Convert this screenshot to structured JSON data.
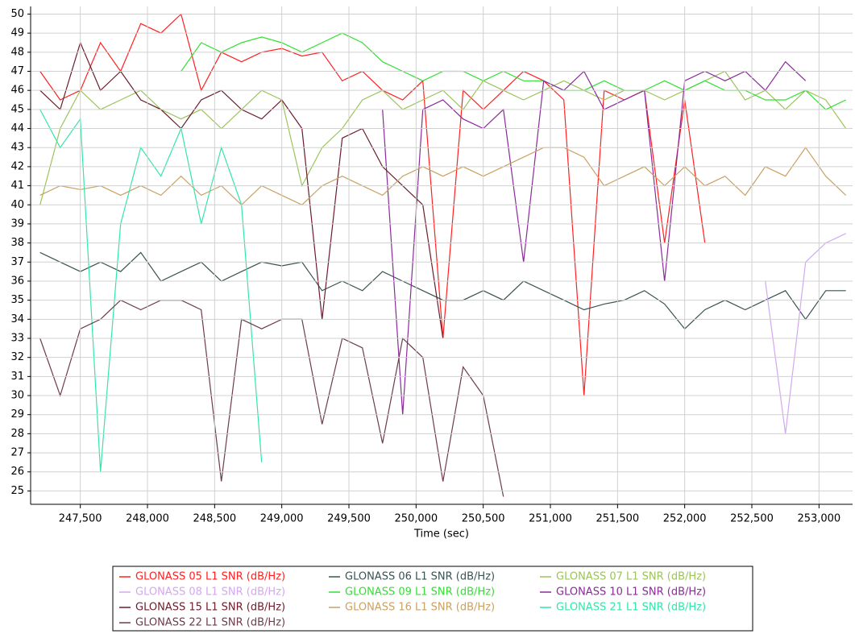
{
  "chart_data": {
    "type": "line",
    "x_label": "Time (sec)",
    "x": [
      247200,
      247350,
      247500,
      247650,
      247800,
      247950,
      248100,
      248250,
      248400,
      248550,
      248700,
      248850,
      249000,
      249150,
      249300,
      249450,
      249600,
      249750,
      249900,
      250050,
      250200,
      250350,
      250500,
      250650,
      250800,
      250950,
      251100,
      251250,
      251400,
      251550,
      251700,
      251850,
      252000,
      252150,
      252300,
      252450,
      252600,
      252750,
      252900,
      253050,
      253200
    ],
    "xlim": [
      247130,
      253250
    ],
    "ylim": [
      24.3,
      50.4
    ],
    "xticks": [
      {
        "value": 247500,
        "label": "247,500"
      },
      {
        "value": 248000,
        "label": "248,000"
      },
      {
        "value": 248500,
        "label": "248,500"
      },
      {
        "value": 249000,
        "label": "249,000"
      },
      {
        "value": 249500,
        "label": "249,500"
      },
      {
        "value": 250000,
        "label": "250,000"
      },
      {
        "value": 250500,
        "label": "250,500"
      },
      {
        "value": 251000,
        "label": "251,000"
      },
      {
        "value": 251500,
        "label": "251,500"
      },
      {
        "value": 252000,
        "label": "252,000"
      },
      {
        "value": 252500,
        "label": "252,500"
      },
      {
        "value": 253000,
        "label": "253,000"
      }
    ],
    "yticks": [
      25,
      26,
      27,
      28,
      29,
      30,
      31,
      32,
      33,
      34,
      35,
      36,
      37,
      38,
      39,
      40,
      41,
      42,
      43,
      44,
      45,
      46,
      47,
      48,
      49,
      50
    ],
    "grid": true,
    "series": [
      {
        "name": "GLONASS 05 L1 SNR (dB/Hz)",
        "color": "#ff2020",
        "values": [
          47,
          45.5,
          46,
          48.5,
          47,
          49.5,
          49,
          50,
          46,
          48,
          47.5,
          48,
          48.2,
          47.8,
          48,
          46.5,
          47,
          46,
          45.5,
          46.5,
          33,
          46,
          45,
          46,
          47,
          46.5,
          45.5,
          30,
          46,
          45.5,
          46,
          38,
          45.5,
          38,
          null,
          null,
          null,
          null,
          null,
          null,
          null
        ]
      },
      {
        "name": "GLONASS 06 L1 SNR (dB/Hz)",
        "color": "#3a5252",
        "values": [
          37.5,
          37,
          36.5,
          37,
          36.5,
          37.5,
          36,
          36.5,
          37,
          36,
          36.5,
          37,
          36.8,
          37,
          35.5,
          36,
          35.5,
          36.5,
          36,
          35.5,
          35,
          35,
          35.5,
          35,
          36,
          35.5,
          35,
          34.5,
          34.8,
          35,
          35.5,
          34.8,
          33.5,
          34.5,
          35,
          34.5,
          35,
          35.5,
          34,
          35.5,
          35.5
        ]
      },
      {
        "name": "GLONASS 07 L1 SNR (dB/Hz)",
        "color": "#9cc35a",
        "values": [
          40,
          44,
          46,
          45,
          45.5,
          46,
          45,
          44.5,
          45,
          44,
          45,
          46,
          45.5,
          41,
          43,
          44,
          45.5,
          46,
          45,
          45.5,
          46,
          45,
          46.5,
          46,
          45.5,
          46,
          46.5,
          46,
          45.5,
          46,
          46,
          45.5,
          46,
          46.5,
          47,
          45.5,
          46,
          45,
          46,
          45.5,
          44
        ]
      },
      {
        "name": "GLONASS 08 L1 SNR (dB/Hz)",
        "color": "#d2a8f2",
        "values": [
          null,
          null,
          null,
          null,
          null,
          null,
          null,
          null,
          null,
          null,
          null,
          null,
          null,
          null,
          null,
          null,
          null,
          null,
          null,
          null,
          null,
          null,
          null,
          null,
          null,
          null,
          null,
          null,
          null,
          null,
          null,
          null,
          null,
          null,
          null,
          null,
          36,
          28,
          37,
          38,
          38.5
        ]
      },
      {
        "name": "GLONASS 09 L1 SNR (dB/Hz)",
        "color": "#33e033",
        "values": [
          null,
          null,
          null,
          null,
          null,
          null,
          null,
          47,
          48.5,
          48,
          48.5,
          48.8,
          48.5,
          48,
          48.5,
          49,
          48.5,
          47.5,
          47,
          46.5,
          47,
          47,
          46.5,
          47,
          46.5,
          46.5,
          46,
          46,
          46.5,
          46,
          46,
          46.5,
          46,
          46.5,
          46,
          46,
          45.5,
          45.5,
          46,
          45,
          45.5
        ]
      },
      {
        "name": "GLONASS 10 L1 SNR (dB/Hz)",
        "color": "#8b2a9b",
        "values": [
          null,
          null,
          null,
          null,
          null,
          null,
          null,
          null,
          null,
          null,
          null,
          null,
          null,
          null,
          null,
          null,
          null,
          45,
          29,
          45,
          45.5,
          44.5,
          44,
          45,
          37,
          46.5,
          46,
          47,
          45,
          45.5,
          46,
          36,
          46.5,
          47,
          46.5,
          47,
          46,
          47.5,
          46.5,
          null,
          null
        ]
      },
      {
        "name": "GLONASS 15 L1 SNR (dB/Hz)",
        "color": "#6b1c2c",
        "values": [
          46,
          45,
          48.5,
          46,
          47,
          45.5,
          45,
          44,
          45.5,
          46,
          45,
          44.5,
          45.5,
          44,
          34,
          43.5,
          44,
          42,
          41,
          40,
          33,
          null,
          null,
          null,
          null,
          null,
          null,
          null,
          null,
          null,
          null,
          null,
          null,
          null,
          null,
          null,
          null,
          null,
          null,
          null,
          null
        ]
      },
      {
        "name": "GLONASS 16 L1 SNR (dB/Hz)",
        "color": "#c9a163",
        "values": [
          40.5,
          41,
          40.8,
          41,
          40.5,
          41,
          40.5,
          41.5,
          40.5,
          41,
          40,
          41,
          40.5,
          40,
          41,
          41.5,
          41,
          40.5,
          41.5,
          42,
          41.5,
          42,
          41.5,
          42,
          42.5,
          43,
          43,
          42.5,
          41,
          41.5,
          42,
          41,
          42,
          41,
          41.5,
          40.5,
          42,
          41.5,
          43,
          41.5,
          40.5
        ]
      },
      {
        "name": "GLONASS 21 L1 SNR (dB/Hz)",
        "color": "#33e6a6",
        "values": [
          45,
          43,
          44.5,
          26,
          39,
          43,
          41.5,
          44,
          39,
          43,
          40,
          26.5,
          null,
          null,
          null,
          null,
          null,
          null,
          null,
          null,
          null,
          null,
          null,
          null,
          null,
          null,
          null,
          null,
          null,
          null,
          null,
          null,
          null,
          null,
          null,
          null,
          null,
          null,
          null,
          null,
          null
        ]
      },
      {
        "name": "GLONASS 22 L1 SNR (dB/Hz)",
        "color": "#6e3b4b",
        "values": [
          33,
          30,
          33.5,
          34,
          35,
          34.5,
          35,
          35,
          34.5,
          25.5,
          34,
          33.5,
          34,
          34,
          28.5,
          33,
          32.5,
          27.5,
          33,
          32,
          25.5,
          31.5,
          30,
          24.7,
          null,
          null,
          null,
          null,
          null,
          null,
          null,
          null,
          null,
          null,
          null,
          null,
          null,
          null,
          null,
          null,
          null
        ]
      }
    ]
  }
}
